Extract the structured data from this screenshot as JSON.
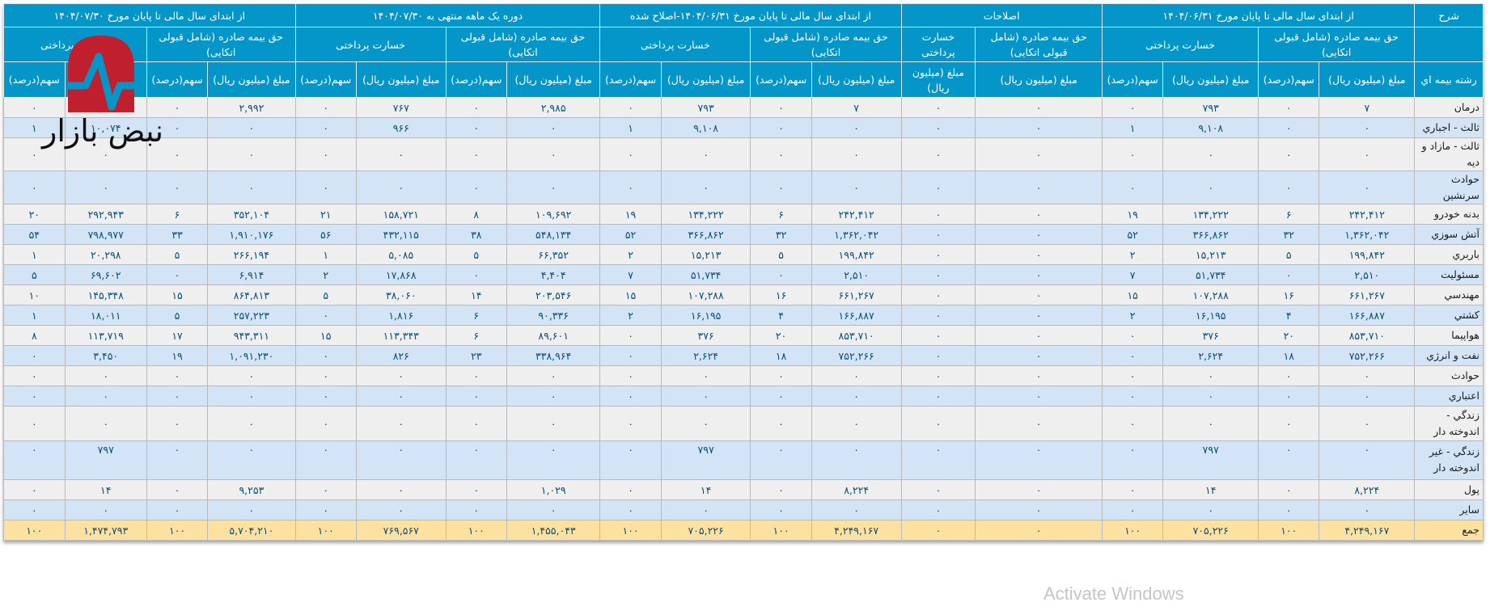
{
  "table": {
    "group_headers": [
      {
        "label": "شرح"
      },
      {
        "label": "از ابتدای سال مالی تا پایان مورخ ۱۴۰۴/۰۶/۳۱"
      },
      {
        "label": "اصلاحات"
      },
      {
        "label": "از ابتدای سال مالی تا پایان مورخ ۱۴۰۴/۰۶/۳۱-اصلاح شده"
      },
      {
        "label": "دوره یک ماهه منتهی به ۱۴۰۴/۰۷/۳۰"
      },
      {
        "label": "از ابتدای سال مالی تا پایان مورخ ۱۴۰۴/۰۷/۳۰"
      }
    ],
    "sub_headers": {
      "premium": "حق بیمه صادره (شامل قبولی اتکایی)",
      "premium_adj": "حق بیمه صادره (شامل قبولی اتکایی)",
      "claims": "خسارت پرداختی",
      "claims_adj": "خسارت پرداختی"
    },
    "col_headers": {
      "line": "رشته بیمه اي",
      "amount": "مبلغ (میلیون ریال)",
      "share": "سهم(درصد)",
      "amount_adj": "مبلغ (میلیون ریال)"
    },
    "rows": [
      {
        "name": "درمان",
        "c": [
          "۷",
          "۰",
          "۷۹۳",
          "۰",
          "۰",
          "۰",
          "۷",
          "۰",
          "۷۹۳",
          "۰",
          "۲,۹۸۵",
          "۰",
          "۷۶۷",
          "۰",
          "۲,۹۹۲",
          "۰",
          "۱,۵۶۰",
          "۰"
        ]
      },
      {
        "name": "ثالث - اجباري",
        "c": [
          "۰",
          "۰",
          "۹,۱۰۸",
          "۱",
          "۰",
          "۰",
          "۰",
          "۰",
          "۹,۱۰۸",
          "۱",
          "۰",
          "۰",
          "۹۶۶",
          "۰",
          "۰",
          "۰",
          "۱۰,۰۷۴",
          "۱"
        ]
      },
      {
        "name": "ثالث - مازاد و ديه",
        "c": [
          "۰",
          "۰",
          "۰",
          "۰",
          "۰",
          "۰",
          "۰",
          "۰",
          "۰",
          "۰",
          "۰",
          "۰",
          "۰",
          "۰",
          "۰",
          "۰",
          "۰",
          "۰"
        ]
      },
      {
        "name": "حوادث سرنشين",
        "c": [
          "۰",
          "۰",
          "۰",
          "۰",
          "۰",
          "۰",
          "۰",
          "۰",
          "۰",
          "۰",
          "۰",
          "۰",
          "۰",
          "۰",
          "۰",
          "۰",
          "۰",
          "۰"
        ]
      },
      {
        "name": "بدنه خودرو",
        "c": [
          "۲۴۲,۴۱۲",
          "۶",
          "۱۳۴,۲۲۲",
          "۱۹",
          "۰",
          "۰",
          "۲۴۲,۴۱۲",
          "۶",
          "۱۳۴,۲۲۲",
          "۱۹",
          "۱۰۹,۶۹۲",
          "۸",
          "۱۵۸,۷۲۱",
          "۲۱",
          "۳۵۲,۱۰۴",
          "۶",
          "۲۹۲,۹۴۳",
          "۲۰"
        ]
      },
      {
        "name": "آتش سوزي",
        "c": [
          "۱,۳۶۲,۰۴۲",
          "۳۲",
          "۳۶۶,۸۶۲",
          "۵۲",
          "۰",
          "۰",
          "۱,۳۶۲,۰۴۲",
          "۳۲",
          "۳۶۶,۸۶۲",
          "۵۲",
          "۵۴۸,۱۳۴",
          "۳۸",
          "۴۳۲,۱۱۵",
          "۵۶",
          "۱,۹۱۰,۱۷۶",
          "۳۳",
          "۷۹۸,۹۷۷",
          "۵۴"
        ]
      },
      {
        "name": "باربري",
        "c": [
          "۱۹۹,۸۴۲",
          "۵",
          "۱۵,۲۱۳",
          "۲",
          "۰",
          "۰",
          "۱۹۹,۸۴۲",
          "۵",
          "۱۵,۲۱۳",
          "۲",
          "۶۶,۳۵۲",
          "۵",
          "۵,۰۸۵",
          "۱",
          "۲۶۶,۱۹۴",
          "۵",
          "۲۰,۲۹۸",
          "۱"
        ]
      },
      {
        "name": "مسئوليت",
        "c": [
          "۲,۵۱۰",
          "۰",
          "۵۱,۷۳۴",
          "۷",
          "۰",
          "۰",
          "۲,۵۱۰",
          "۰",
          "۵۱,۷۳۴",
          "۷",
          "۴,۴۰۴",
          "۰",
          "۱۷,۸۶۸",
          "۲",
          "۶,۹۱۴",
          "۰",
          "۶۹,۶۰۲",
          "۵"
        ]
      },
      {
        "name": "مهندسي",
        "c": [
          "۶۶۱,۲۶۷",
          "۱۶",
          "۱۰۷,۲۸۸",
          "۱۵",
          "۰",
          "۰",
          "۶۶۱,۲۶۷",
          "۱۶",
          "۱۰۷,۲۸۸",
          "۱۵",
          "۲۰۳,۵۴۶",
          "۱۴",
          "۳۸,۰۶۰",
          "۵",
          "۸۶۴,۸۱۳",
          "۱۵",
          "۱۴۵,۳۴۸",
          "۱۰"
        ]
      },
      {
        "name": "كشتي",
        "c": [
          "۱۶۶,۸۸۷",
          "۴",
          "۱۶,۱۹۵",
          "۲",
          "۰",
          "۰",
          "۱۶۶,۸۸۷",
          "۴",
          "۱۶,۱۹۵",
          "۲",
          "۹۰,۳۳۶",
          "۶",
          "۱,۸۱۶",
          "۰",
          "۲۵۷,۲۲۳",
          "۵",
          "۱۸,۰۱۱",
          "۱"
        ]
      },
      {
        "name": "هواپيما",
        "c": [
          "۸۵۳,۷۱۰",
          "۲۰",
          "۳۷۶",
          "۰",
          "۰",
          "۰",
          "۸۵۳,۷۱۰",
          "۲۰",
          "۳۷۶",
          "۰",
          "۸۹,۶۰۱",
          "۶",
          "۱۱۳,۳۴۳",
          "۱۵",
          "۹۴۳,۳۱۱",
          "۱۷",
          "۱۱۳,۷۱۹",
          "۸"
        ]
      },
      {
        "name": "نفت و انرژي",
        "c": [
          "۷۵۲,۲۶۶",
          "۱۸",
          "۲,۶۲۴",
          "۰",
          "۰",
          "۰",
          "۷۵۲,۲۶۶",
          "۱۸",
          "۲,۶۲۴",
          "۰",
          "۳۳۸,۹۶۴",
          "۲۳",
          "۸۲۶",
          "۰",
          "۱,۰۹۱,۲۳۰",
          "۱۹",
          "۳,۴۵۰",
          "۰"
        ]
      },
      {
        "name": "حوادث",
        "c": [
          "۰",
          "۰",
          "۰",
          "۰",
          "۰",
          "۰",
          "۰",
          "۰",
          "۰",
          "۰",
          "۰",
          "۰",
          "۰",
          "۰",
          "۰",
          "۰",
          "۰",
          "۰"
        ]
      },
      {
        "name": "اعتباري",
        "c": [
          "۰",
          "۰",
          "۰",
          "۰",
          "۰",
          "۰",
          "۰",
          "۰",
          "۰",
          "۰",
          "۰",
          "۰",
          "۰",
          "۰",
          "۰",
          "۰",
          "۰",
          "۰"
        ]
      },
      {
        "name": "زندگي - اندوخته دار",
        "c": [
          "۰",
          "۰",
          "۰",
          "۰",
          "۰",
          "۰",
          "۰",
          "۰",
          "۰",
          "۰",
          "۰",
          "۰",
          "۰",
          "۰",
          "۰",
          "۰",
          "۰",
          "۰"
        ]
      },
      {
        "name": "زندگي - غير اندوخته دار",
        "c": [
          "۰",
          "۰",
          "۷۹۷",
          "۰",
          "۰",
          "۰",
          "۰",
          "۰",
          "۷۹۷",
          "۰",
          "۰",
          "۰",
          "۰",
          "۰",
          "۰",
          "۰",
          "۷۹۷",
          "۰"
        ]
      },
      {
        "name": "پول",
        "c": [
          "۸,۲۲۴",
          "۰",
          "۱۴",
          "۰",
          "۰",
          "۰",
          "۸,۲۲۴",
          "۰",
          "۱۴",
          "۰",
          "۱,۰۲۹",
          "۰",
          "۰",
          "۰",
          "۹,۲۵۳",
          "۰",
          "۱۴",
          "۰"
        ]
      },
      {
        "name": "ساير",
        "c": [
          "۰",
          "۰",
          "۰",
          "۰",
          "۰",
          "۰",
          "۰",
          "۰",
          "۰",
          "۰",
          "۰",
          "۰",
          "۰",
          "۰",
          "۰",
          "۰",
          "۰",
          "۰"
        ]
      },
      {
        "name": "جمع",
        "c": [
          "۴,۲۴۹,۱۶۷",
          "۱۰۰",
          "۷۰۵,۲۲۶",
          "۱۰۰",
          "۰",
          "۰",
          "۴,۲۴۹,۱۶۷",
          "۱۰۰",
          "۷۰۵,۲۲۶",
          "۱۰۰",
          "۱,۴۵۵,۰۴۳",
          "۱۰۰",
          "۷۶۹,۵۶۷",
          "۱۰۰",
          "۵,۷۰۴,۲۱۰",
          "۱۰۰",
          "۱,۴۷۴,۷۹۳",
          "۱۰۰"
        ]
      }
    ]
  },
  "watermark": {
    "brand": "نبض بازار",
    "os_notice": "Activate Windows"
  },
  "colors": {
    "header_bg": "#0596c9",
    "row_odd": "#efefef",
    "row_even": "#d2e4f5",
    "total_row": "#fde1a1",
    "value_text": "#0c4f77",
    "logo_red": "#c0202e"
  }
}
